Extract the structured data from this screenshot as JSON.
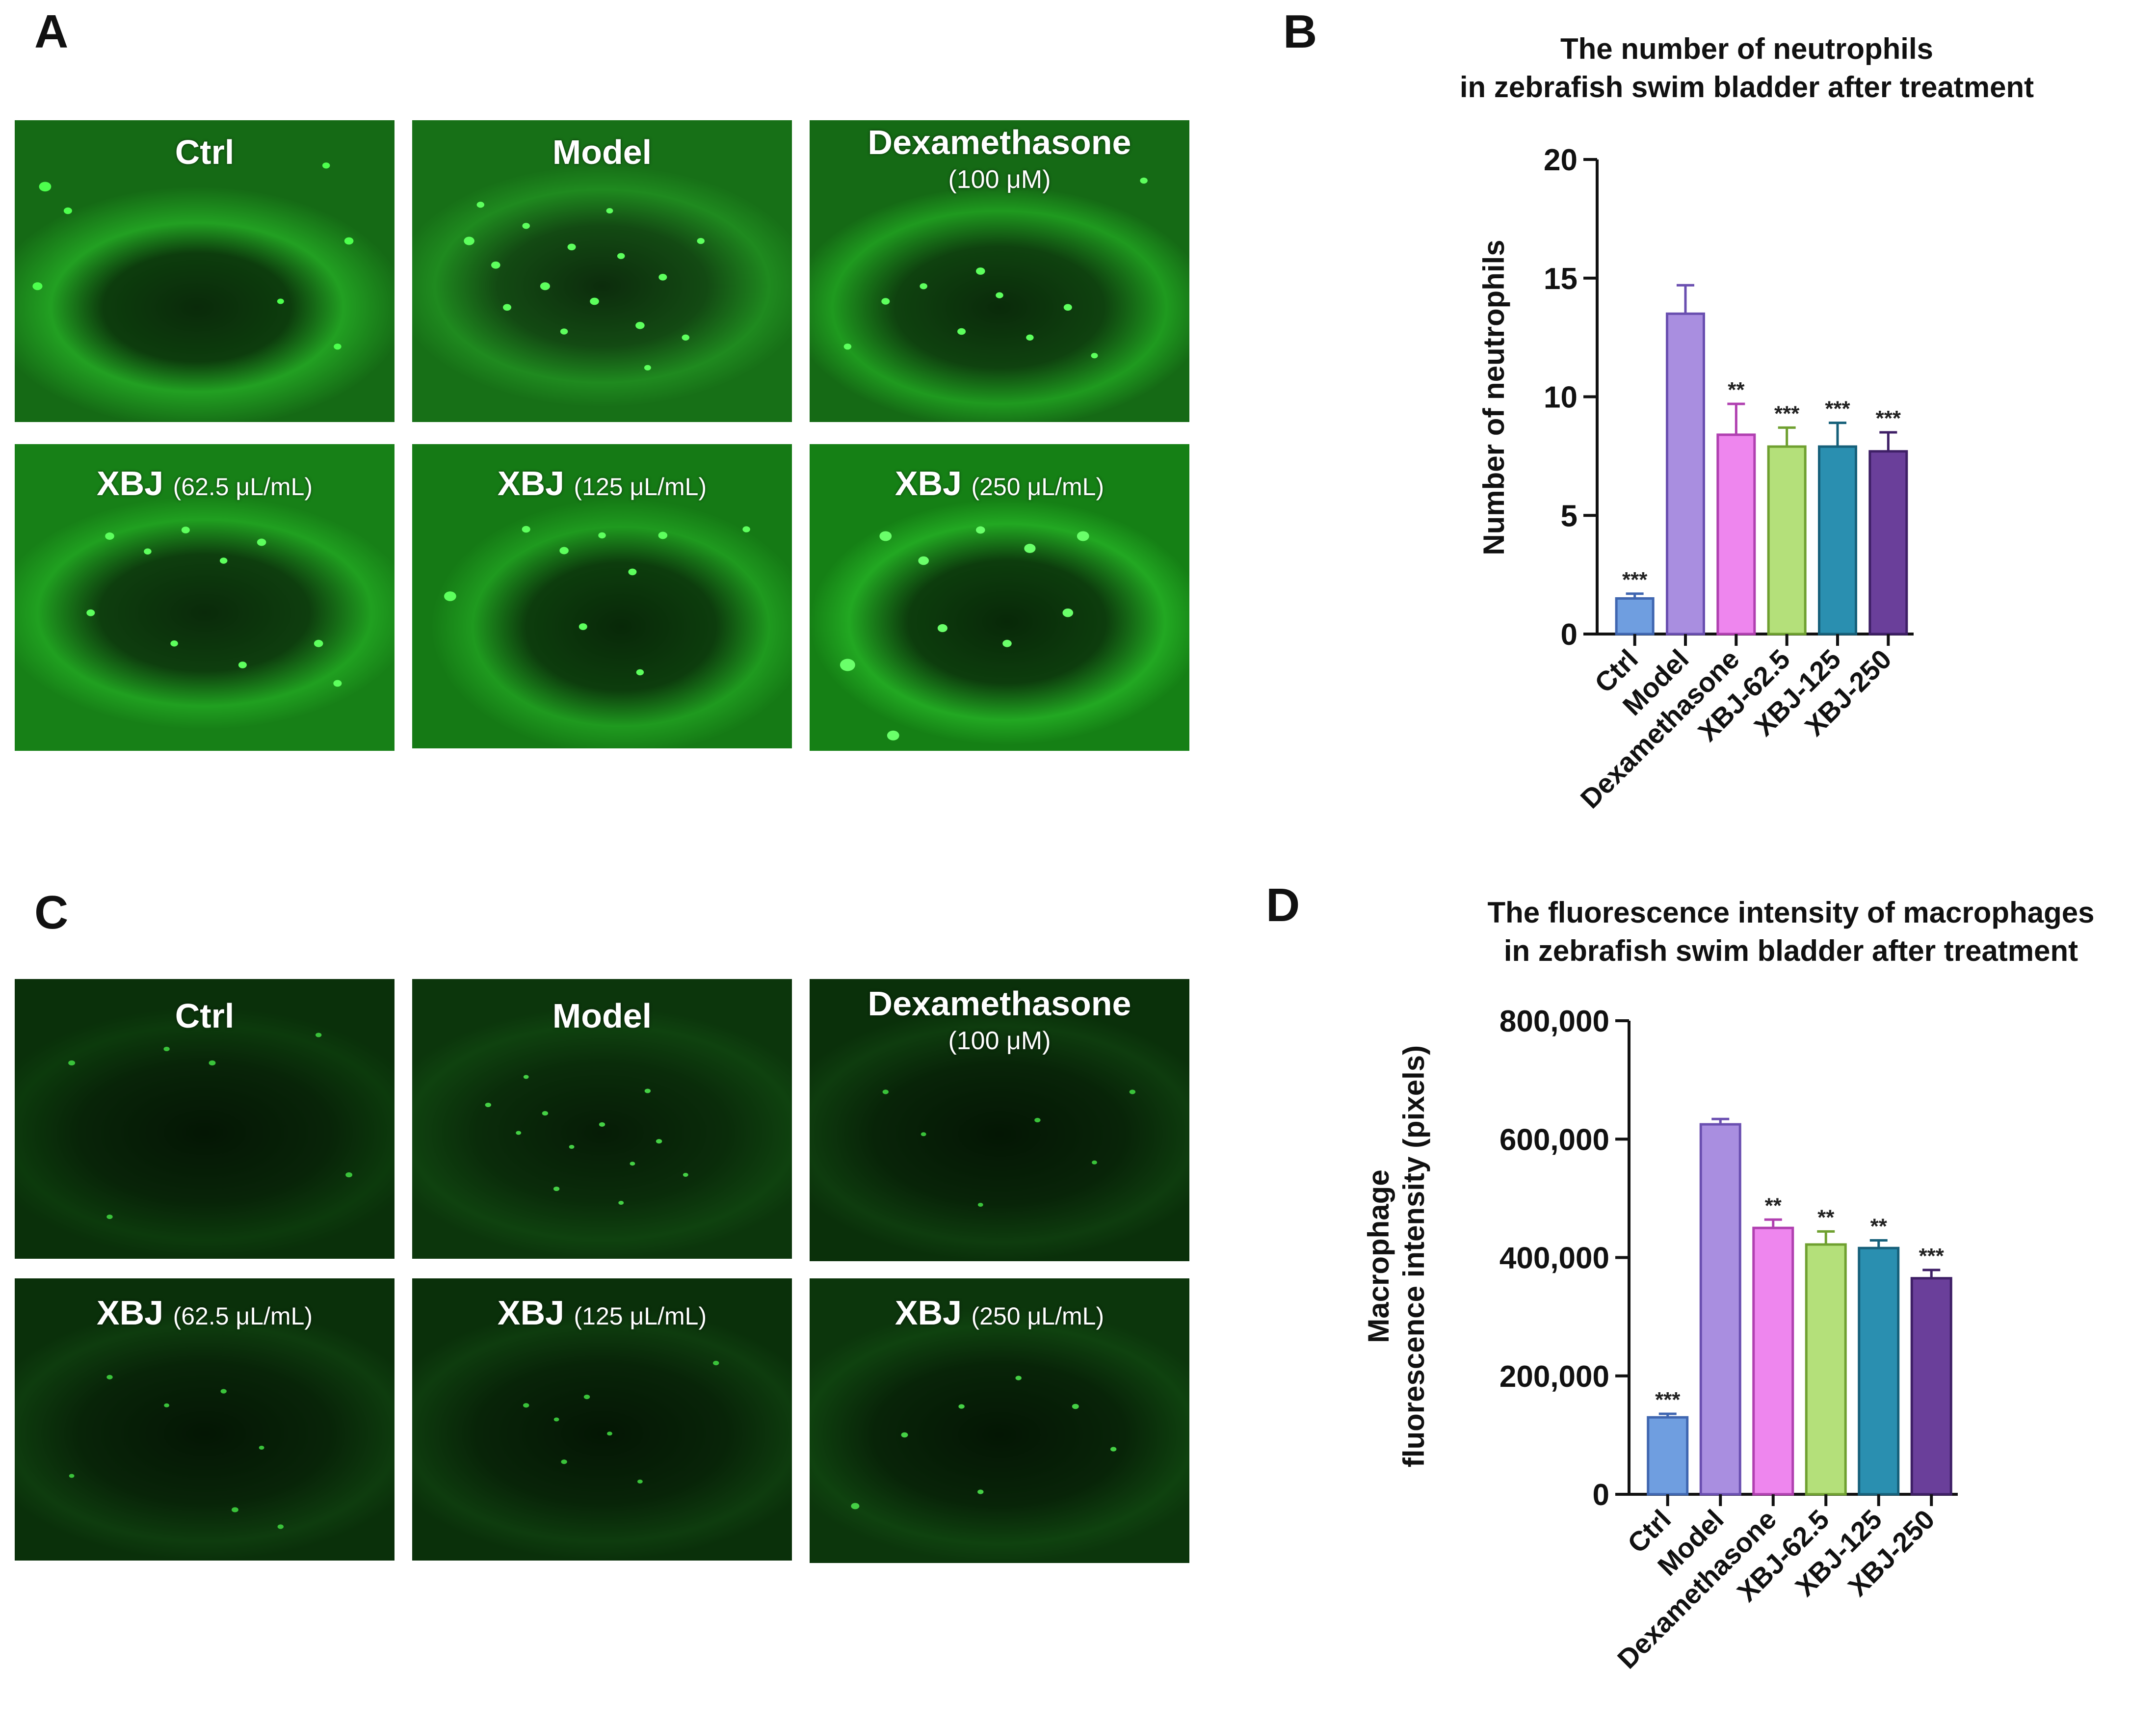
{
  "panels": {
    "A": "A",
    "B": "B",
    "C": "C",
    "D": "D"
  },
  "micrographs": {
    "A": [
      {
        "name": "Ctrl",
        "conc": ""
      },
      {
        "name": "Model",
        "conc": ""
      },
      {
        "name": "Dexamethasone",
        "conc": "(100 μM)"
      },
      {
        "name": "XBJ",
        "conc": "(62.5 μL/mL)"
      },
      {
        "name": "XBJ",
        "conc": "(125 μL/mL)"
      },
      {
        "name": "XBJ",
        "conc": "(250 μL/mL)"
      }
    ],
    "C": [
      {
        "name": "Ctrl",
        "conc": ""
      },
      {
        "name": "Model",
        "conc": ""
      },
      {
        "name": "Dexamethasone",
        "conc": "(100 μM)"
      },
      {
        "name": "XBJ",
        "conc": "(62.5 μL/mL)"
      },
      {
        "name": "XBJ",
        "conc": "(125 μL/mL)"
      },
      {
        "name": "XBJ",
        "conc": "(250 μL/mL)"
      }
    ]
  },
  "colors": {
    "fluorescence_bright": "#35c435",
    "fluorescence_dim": "#0b3a0b",
    "bars": [
      "#6f9ee0",
      "#a98ee0",
      "#ee86ee",
      "#b4e07a",
      "#2a8fb0",
      "#6a3f9a"
    ],
    "bar_edges": [
      "#3f66b0",
      "#6a4fb0",
      "#b040b0",
      "#6fa030",
      "#16607a",
      "#3e1f66"
    ]
  },
  "chart_data": [
    {
      "type": "bar",
      "title": [
        "The number of neutrophils",
        "in zebrafish swim bladder after treatment"
      ],
      "ylabel": "Number of neutrophils",
      "xlabel": "",
      "categories": [
        "Ctrl",
        "Model",
        "Dexamethasone",
        "XBJ-62.5",
        "XBJ-125",
        "XBJ-250"
      ],
      "values": [
        1.5,
        13.5,
        8.4,
        7.9,
        7.9,
        7.7
      ],
      "errors": [
        0.2,
        1.2,
        1.3,
        0.8,
        1.0,
        0.8
      ],
      "significance": [
        "***",
        "",
        "**",
        "***",
        "***",
        "***"
      ],
      "ylim": [
        0,
        20
      ],
      "yticks": [
        0,
        5,
        10,
        15,
        20
      ],
      "ytick_labels": [
        "0",
        "5",
        "10",
        "15",
        "20"
      ]
    },
    {
      "type": "bar",
      "title": [
        "The fluorescence intensity of macrophages",
        "in zebrafish swim bladder after treatment"
      ],
      "ylabel": [
        "Macrophage",
        "fluorescence intensity (pixels)"
      ],
      "xlabel": "",
      "categories": [
        "Ctrl",
        "Model",
        "Dexamethasone",
        "XBJ-62.5",
        "XBJ-125",
        "XBJ-250"
      ],
      "values": [
        130000,
        625000,
        450000,
        422000,
        416000,
        365000
      ],
      "errors": [
        6000,
        9000,
        14000,
        22000,
        13000,
        14000
      ],
      "significance": [
        "***",
        "",
        "**",
        "**",
        "**",
        "***"
      ],
      "ylim": [
        0,
        800000
      ],
      "yticks": [
        0,
        200000,
        400000,
        600000,
        800000
      ],
      "ytick_labels": [
        "0",
        "200,000",
        "400,000",
        "600,000",
        "800,000"
      ]
    }
  ]
}
